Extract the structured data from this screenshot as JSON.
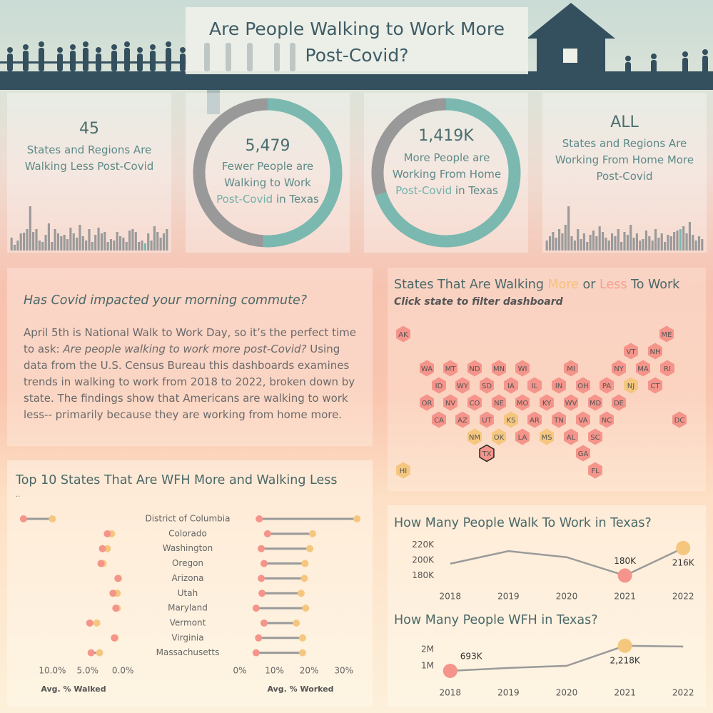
{
  "title": "Are People Walking to Work More Post-Covid?",
  "kpis": [
    {
      "value": "45",
      "label": [
        "States and Regions Are Walking Less Post-Covid"
      ]
    },
    {
      "value": "5,479",
      "label": [
        "Fewer People are Walking to Work ",
        "Post-Covid",
        " in Texas"
      ]
    },
    {
      "value": "1,419K",
      "label": [
        "More People are Working From Home ",
        "Post-Covid",
        " in Texas"
      ]
    },
    {
      "value": "ALL",
      "label": [
        "States and Regions Are Working From Home More Post-Covid"
      ]
    }
  ],
  "intro": {
    "title": "Has Covid impacted your morning commute?",
    "paragraph": [
      "April 5th is National Walk to Work Day, so it’s the perfect time to ask: ",
      "Are people walking to work more post-Covid?",
      "  Using data from the U.S. Census Bureau this dashboards examines trends in walking to work from 2018 to 2022, broken down by state. The findings show that Americans are walking to work less-- primarily because they are working from home more."
    ]
  },
  "map": {
    "title": [
      "States That Are Walking ",
      "More",
      " or ",
      "Less",
      " To Work"
    ],
    "subtitle": "Click state to filter dashboard",
    "title_colors": [
      null,
      "#f5c07a",
      null,
      "#f4a090",
      null
    ],
    "states": [
      {
        "abbr": "AK",
        "color": "#f4948a"
      },
      {
        "abbr": "ME",
        "color": "#f4948a"
      },
      {
        "abbr": "VT",
        "color": "#f4948a"
      },
      {
        "abbr": "NH",
        "color": "#f4948a"
      },
      {
        "abbr": "WA",
        "color": "#f4948a"
      },
      {
        "abbr": "MT",
        "color": "#f4948a"
      },
      {
        "abbr": "ND",
        "color": "#f4948a"
      },
      {
        "abbr": "MN",
        "color": "#f4948a"
      },
      {
        "abbr": "WI",
        "color": "#f4948a"
      },
      {
        "abbr": "MI",
        "color": "#f4948a"
      },
      {
        "abbr": "NY",
        "color": "#f4948a"
      },
      {
        "abbr": "MA",
        "color": "#f4948a"
      },
      {
        "abbr": "RI",
        "color": "#f4948a"
      },
      {
        "abbr": "ID",
        "color": "#f4948a"
      },
      {
        "abbr": "WY",
        "color": "#f4948a"
      },
      {
        "abbr": "SD",
        "color": "#f4948a"
      },
      {
        "abbr": "IA",
        "color": "#f4948a"
      },
      {
        "abbr": "IL",
        "color": "#f4948a"
      },
      {
        "abbr": "IN",
        "color": "#f4948a"
      },
      {
        "abbr": "OH",
        "color": "#f4948a"
      },
      {
        "abbr": "PA",
        "color": "#f4948a"
      },
      {
        "abbr": "NJ",
        "color": "#f5c77e"
      },
      {
        "abbr": "CT",
        "color": "#f4948a"
      },
      {
        "abbr": "OR",
        "color": "#f4948a"
      },
      {
        "abbr": "NV",
        "color": "#f4948a"
      },
      {
        "abbr": "CO",
        "color": "#f4948a"
      },
      {
        "abbr": "NE",
        "color": "#f4948a"
      },
      {
        "abbr": "MO",
        "color": "#f4948a"
      },
      {
        "abbr": "KY",
        "color": "#f4948a"
      },
      {
        "abbr": "WV",
        "color": "#f4948a"
      },
      {
        "abbr": "MD",
        "color": "#f4948a"
      },
      {
        "abbr": "DE",
        "color": "#f4948a"
      },
      {
        "abbr": "CA",
        "color": "#f4948a"
      },
      {
        "abbr": "AZ",
        "color": "#f4948a"
      },
      {
        "abbr": "UT",
        "color": "#f4948a"
      },
      {
        "abbr": "KS",
        "color": "#f5c77e"
      },
      {
        "abbr": "AR",
        "color": "#f4948a"
      },
      {
        "abbr": "TN",
        "color": "#f4948a"
      },
      {
        "abbr": "VA",
        "color": "#f4948a"
      },
      {
        "abbr": "NC",
        "color": "#f4948a"
      },
      {
        "abbr": "DC",
        "color": "#f4948a"
      },
      {
        "abbr": "NM",
        "color": "#f5c77e"
      },
      {
        "abbr": "OK",
        "color": "#f5c77e"
      },
      {
        "abbr": "LA",
        "color": "#f4948a"
      },
      {
        "abbr": "MS",
        "color": "#f5c77e"
      },
      {
        "abbr": "AL",
        "color": "#f4948a"
      },
      {
        "abbr": "SC",
        "color": "#f4948a"
      },
      {
        "abbr": "TX",
        "color": "#f4948a",
        "selected": true
      },
      {
        "abbr": "GA",
        "color": "#f4948a"
      },
      {
        "abbr": "HI",
        "color": "#f5c77e"
      },
      {
        "abbr": "FL",
        "color": "#f4948a"
      }
    ]
  },
  "chart_data": [
    {
      "type": "bar",
      "color": "#9a9a9a",
      "highlight_color": "#7ab8b0",
      "highlight": 43,
      "ylim": [
        0,
        65
      ],
      "values": [
        18,
        8,
        14,
        24,
        25,
        30,
        62,
        26,
        30,
        14,
        12,
        22,
        38,
        12,
        30,
        24,
        20,
        22,
        16,
        32,
        24,
        18,
        36,
        20,
        14,
        30,
        12,
        22,
        32,
        24,
        26,
        12,
        16,
        14,
        26,
        20,
        18,
        12,
        28,
        30,
        26,
        12,
        14,
        10,
        24,
        14,
        34,
        26,
        18,
        24,
        30
      ]
    },
    {
      "type": "donut",
      "values": [
        51,
        49
      ],
      "colors": [
        "#7ab8b0",
        "#999999"
      ]
    },
    {
      "type": "donut",
      "values": [
        70,
        30
      ],
      "colors": [
        "#7ab8b0",
        "#999999"
      ]
    },
    {
      "type": "bar",
      "color": "#9a9a9a",
      "highlight_color": "#7ab8b0",
      "highlight": 43,
      "ylim": [
        0,
        65
      ],
      "values": [
        14,
        20,
        26,
        18,
        30,
        24,
        36,
        62,
        20,
        14,
        30,
        16,
        24,
        12,
        22,
        28,
        20,
        34,
        26,
        18,
        14,
        24,
        20,
        30,
        12,
        26,
        22,
        36,
        18,
        24,
        14,
        16,
        28,
        20,
        14,
        30,
        18,
        24,
        12,
        22,
        20,
        26,
        28,
        30,
        34,
        24,
        40,
        22,
        14,
        20,
        16
      ]
    },
    {
      "type": "dumbbell",
      "title": "Top 10 States That Are WFH More and Walking Less",
      "subtitle": "..",
      "categories": [
        "District of Columbia",
        "Colorado",
        "Washington",
        "Oregon",
        "Arizona",
        "Utah",
        "Maryland",
        "Vermont",
        "Virginia",
        "Massachusetts"
      ],
      "line_color": "#9a9a9a",
      "panels": [
        {
          "xlabel": "Avg. % Walked",
          "xlim": [
            15,
            -1
          ],
          "xticks": [
            {
              "value": 10,
              "label": "10.0%"
            },
            {
              "value": 5,
              "label": "5.0%"
            },
            {
              "value": 0,
              "label": "0.0%"
            }
          ],
          "series": [
            {
              "color": "#f4948a",
              "values": [
                14.1,
                2.2,
                2.9,
                3.1,
                0.7,
                1.4,
                1.0,
                4.7,
                1.2,
                4.5
              ]
            },
            {
              "color": "#f5c77e",
              "values": [
                10.0,
                1.6,
                2.2,
                2.8,
                0.6,
                0.8,
                0.8,
                3.7,
                1.1,
                3.3
              ]
            }
          ]
        },
        {
          "xlabel": "Avg. % Worked",
          "xlim": [
            0,
            35
          ],
          "xticks": [
            {
              "value": 0,
              "label": "0%"
            },
            {
              "value": 10,
              "label": "10%"
            },
            {
              "value": 20,
              "label": "20%"
            },
            {
              "value": 30,
              "label": "30%"
            }
          ],
          "series": [
            {
              "color": "#f4948a",
              "values": [
                5.6,
                8.0,
                6.2,
                7.0,
                6.2,
                6.4,
                4.7,
                7.0,
                5.4,
                4.7
              ]
            },
            {
              "color": "#f5c77e",
              "values": [
                33.8,
                21.0,
                20.2,
                18.8,
                18.6,
                17.7,
                19.0,
                16.3,
                18.1,
                18.1
              ]
            }
          ]
        }
      ]
    },
    {
      "type": "line",
      "title": "How Many People Walk To Work in Texas?",
      "color": "#9a9a9a",
      "categories": [
        "2018",
        "2019",
        "2020",
        "2021",
        "2022"
      ],
      "values": [
        195500,
        212000,
        204000,
        180000,
        216000
      ],
      "value_labels": [
        null,
        null,
        null,
        "180K",
        "216K"
      ],
      "point_colors": [
        null,
        null,
        null,
        "#f4948a",
        "#f5c77e"
      ],
      "ylim": [
        172000,
        228000
      ],
      "yticks": [
        {
          "value": 180000,
          "label": "180K"
        },
        {
          "value": 200000,
          "label": "200K"
        },
        {
          "value": 220000,
          "label": "220K"
        }
      ]
    },
    {
      "type": "line",
      "title": "How Many People WFH in Texas?",
      "color": "#9a9a9a",
      "categories": [
        "2018",
        "2019",
        "2020",
        "2021",
        "2022"
      ],
      "values": [
        693000,
        870000,
        1000000,
        2218000,
        2170000
      ],
      "value_labels": [
        "693K",
        null,
        null,
        "2,218K",
        null
      ],
      "point_colors": [
        "#f4948a",
        null,
        null,
        "#f5c77e",
        null
      ],
      "ylim": [
        300000,
        2600000
      ],
      "yticks": [
        {
          "value": 1000000,
          "label": "1M"
        },
        {
          "value": 2000000,
          "label": "2M"
        }
      ]
    }
  ]
}
